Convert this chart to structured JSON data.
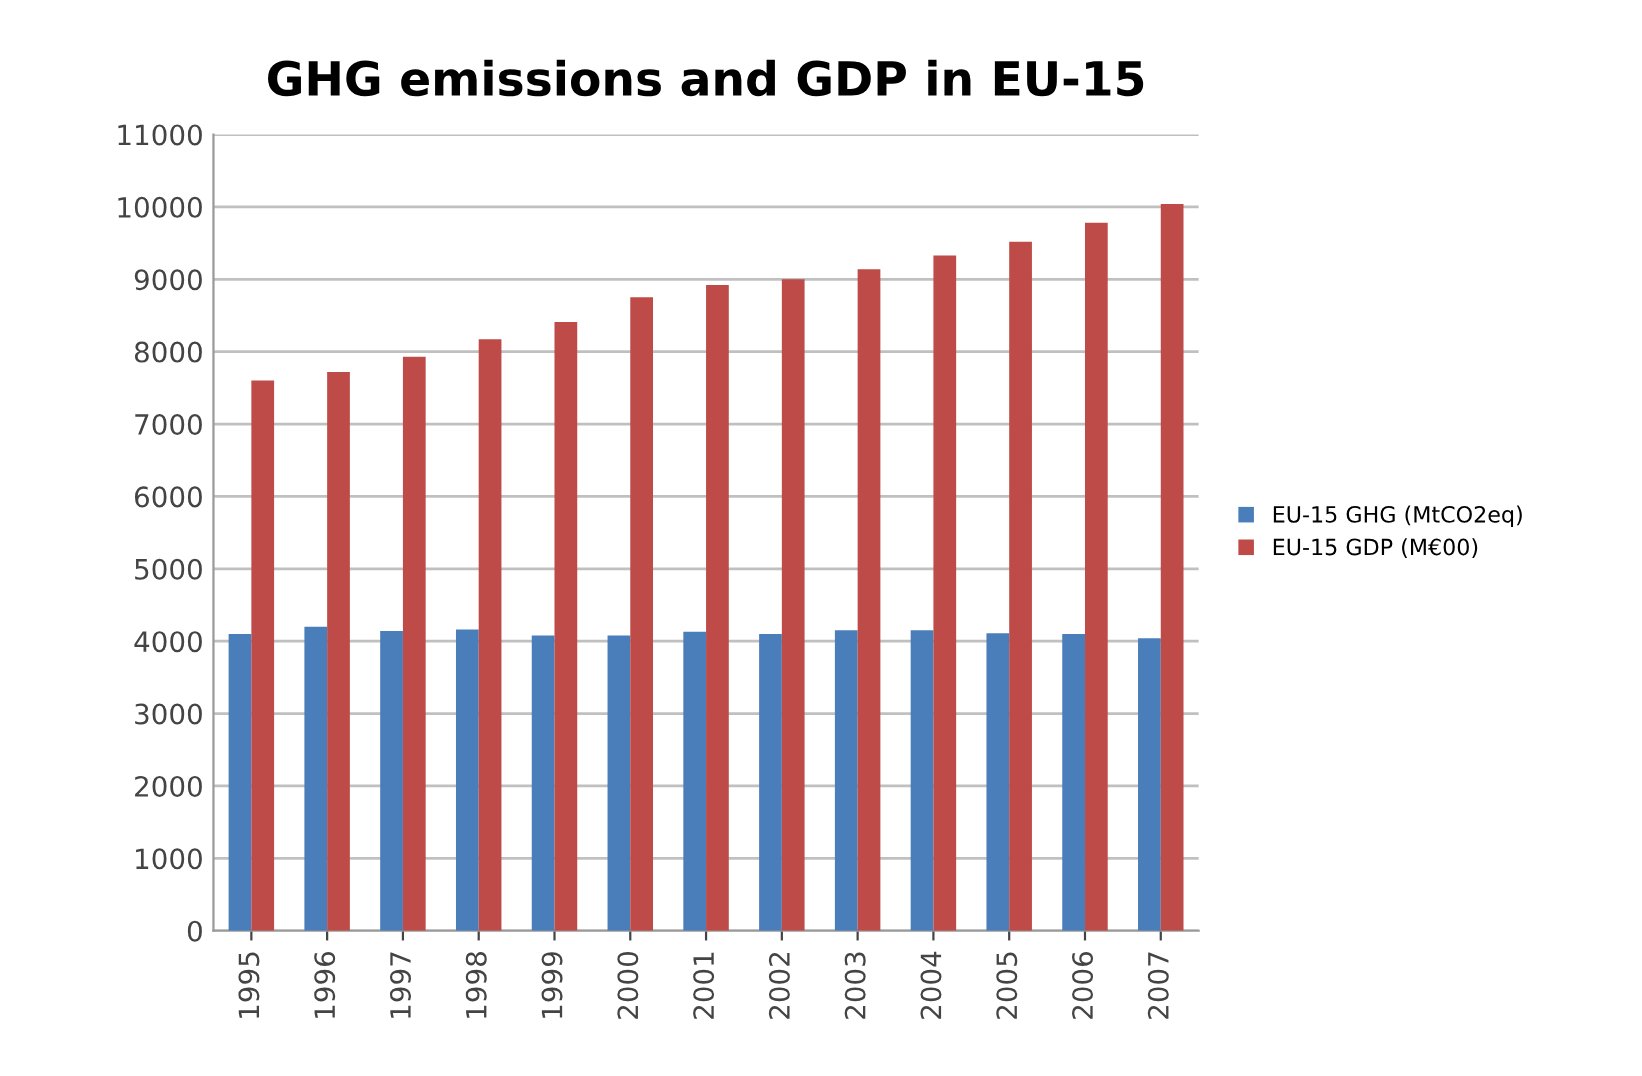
{
  "chart_data": {
    "type": "bar",
    "title": "GHG emissions and GDP in EU-15",
    "categories": [
      "1995",
      "1996",
      "1997",
      "1998",
      "1999",
      "2000",
      "2001",
      "2002",
      "2003",
      "2004",
      "2005",
      "2006",
      "2007"
    ],
    "series": [
      {
        "name": "EU-15 GHG (MtCO2eq)",
        "color": "#4a7ebb",
        "values": [
          4100,
          4200,
          4140,
          4160,
          4080,
          4080,
          4130,
          4100,
          4150,
          4150,
          4110,
          4100,
          4040
        ]
      },
      {
        "name": "EU-15 GDP (M€00)",
        "color": "#be4b48",
        "values": [
          7600,
          7720,
          7930,
          8170,
          8410,
          8750,
          8920,
          9000,
          9140,
          9330,
          9520,
          9780,
          10040
        ]
      }
    ],
    "ylim": [
      0,
      11000
    ],
    "yticks": [
      0,
      1000,
      2000,
      3000,
      4000,
      5000,
      6000,
      7000,
      8000,
      9000,
      10000,
      11000
    ],
    "grid": "y",
    "legend": "right"
  }
}
